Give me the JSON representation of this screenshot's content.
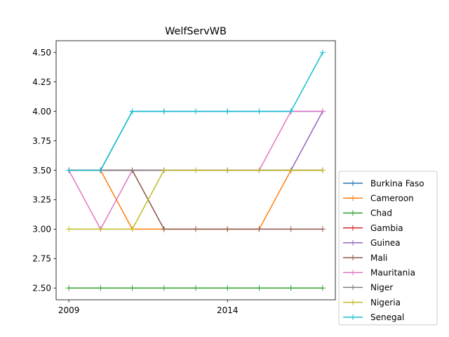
{
  "chart_data": {
    "type": "line",
    "title": "WelfServWB",
    "xlabel": "",
    "ylabel": "",
    "x": [
      2009,
      2010,
      2011,
      2012,
      2013,
      2014,
      2015,
      2016,
      2017
    ],
    "xticks": [
      "2009",
      "2014"
    ],
    "xlim": [
      2008.6,
      2017.4
    ],
    "ylim": [
      2.4,
      4.6
    ],
    "yticks": [
      "2.50",
      "2.75",
      "3.00",
      "3.25",
      "3.50",
      "3.75",
      "4.00",
      "4.25",
      "4.50"
    ],
    "grid": false,
    "legend_position": "outside-bottom-right",
    "series": [
      {
        "name": "Burkina Faso",
        "color": "#1f77b4",
        "values": [
          3.5,
          3.5,
          4.0,
          4.0,
          4.0,
          4.0,
          4.0,
          4.0,
          4.0
        ]
      },
      {
        "name": "Cameroon",
        "color": "#ff7f0e",
        "values": [
          3.5,
          3.5,
          3.0,
          3.0,
          3.0,
          3.0,
          3.0,
          3.5,
          3.5
        ]
      },
      {
        "name": "Chad",
        "color": "#2ca02c",
        "values": [
          2.5,
          2.5,
          2.5,
          2.5,
          2.5,
          2.5,
          2.5,
          2.5,
          2.5
        ]
      },
      {
        "name": "Gambia",
        "color": "#d62728",
        "values": [
          3.5,
          3.5,
          3.5,
          3.5,
          3.5,
          3.5,
          3.5,
          3.5,
          3.5
        ]
      },
      {
        "name": "Guinea",
        "color": "#9467bd",
        "values": [
          3.5,
          3.5,
          3.5,
          3.5,
          3.5,
          3.5,
          3.5,
          3.5,
          4.0
        ]
      },
      {
        "name": "Mali",
        "color": "#8c564b",
        "values": [
          3.5,
          3.5,
          3.5,
          3.0,
          3.0,
          3.0,
          3.0,
          3.0,
          3.0
        ]
      },
      {
        "name": "Mauritania",
        "color": "#e377c2",
        "values": [
          3.5,
          3.0,
          3.5,
          3.5,
          3.5,
          3.5,
          3.5,
          4.0,
          4.0
        ]
      },
      {
        "name": "Niger",
        "color": "#7f7f7f",
        "values": [
          3.5,
          3.5,
          3.5,
          3.5,
          3.5,
          3.5,
          3.5,
          3.5,
          3.5
        ]
      },
      {
        "name": "Nigeria",
        "color": "#bcbd22",
        "values": [
          3.0,
          3.0,
          3.0,
          3.5,
          3.5,
          3.5,
          3.5,
          3.5,
          3.5
        ]
      },
      {
        "name": "Senegal",
        "color": "#17becf",
        "values": [
          3.5,
          3.5,
          4.0,
          4.0,
          4.0,
          4.0,
          4.0,
          4.0,
          4.5
        ]
      }
    ]
  }
}
